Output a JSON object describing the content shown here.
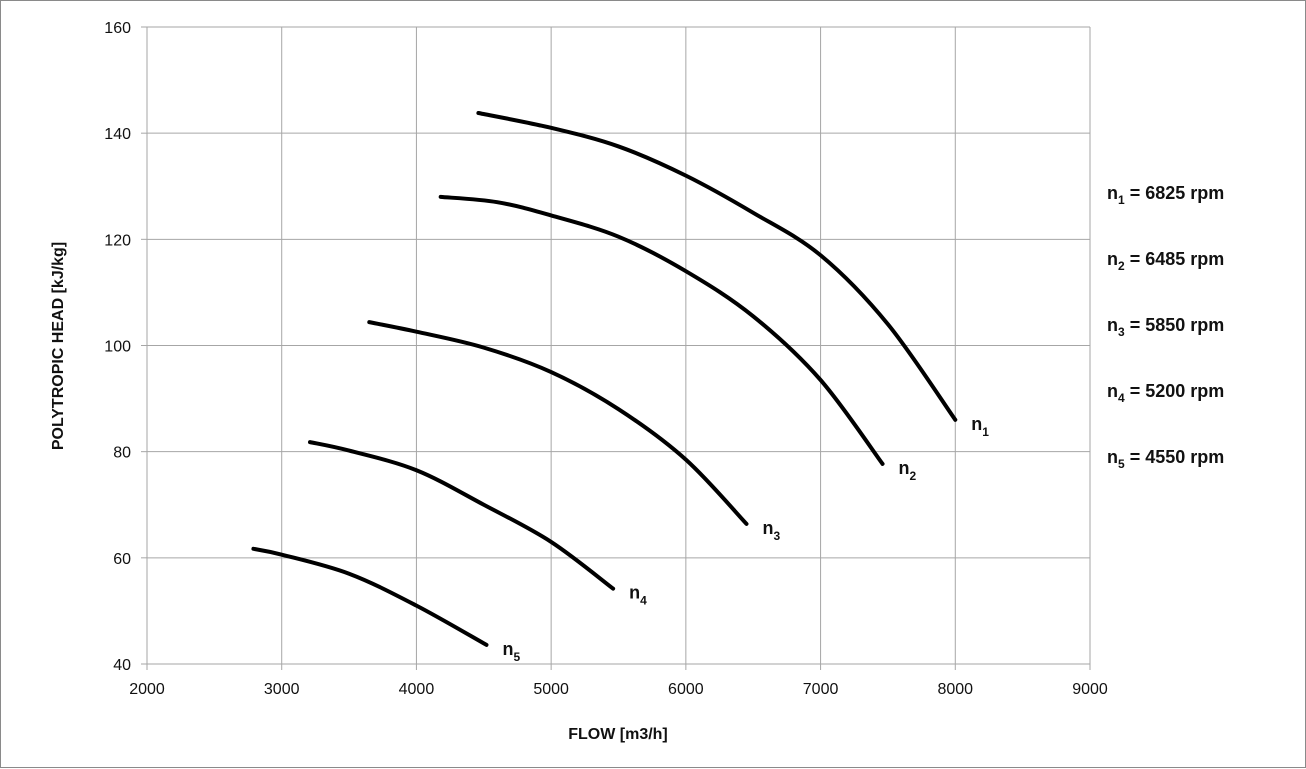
{
  "chart_data": {
    "type": "line",
    "title": "",
    "xlabel": "FLOW [m3/h]",
    "ylabel": "POLYTROPIC HEAD [kJ/kg]",
    "xlim": [
      2000,
      9000
    ],
    "ylim": [
      40,
      160
    ],
    "xticks": [
      2000,
      3000,
      4000,
      5000,
      6000,
      7000,
      8000,
      9000
    ],
    "yticks": [
      40,
      60,
      80,
      100,
      120,
      140,
      160
    ],
    "grid": true,
    "legend_placement": "right",
    "series": [
      {
        "name": "n",
        "sub": "1",
        "legend_text": "= 6825 rpm",
        "x": [
          4460,
          5000,
          5500,
          6000,
          6500,
          7000,
          7500,
          8000
        ],
        "y": [
          143.8,
          141,
          137.5,
          132,
          125,
          117,
          104,
          86
        ]
      },
      {
        "name": "n",
        "sub": "2",
        "legend_text": "= 6485 rpm",
        "x": [
          4180,
          4600,
          5000,
          5500,
          6000,
          6500,
          7000,
          7460
        ],
        "y": [
          128,
          127,
          124.5,
          120.5,
          114,
          105.5,
          93.5,
          77.7
        ]
      },
      {
        "name": "n",
        "sub": "3",
        "legend_text": "= 5850 rpm",
        "x": [
          3650,
          4000,
          4500,
          5000,
          5500,
          6000,
          6450
        ],
        "y": [
          104.4,
          102.6,
          99.6,
          95,
          88,
          78.5,
          66.4
        ]
      },
      {
        "name": "n",
        "sub": "4",
        "legend_text": "= 5200 rpm",
        "x": [
          3210,
          3500,
          4000,
          4500,
          5000,
          5460
        ],
        "y": [
          81.8,
          80.2,
          76.5,
          70,
          63,
          54.2
        ]
      },
      {
        "name": "n",
        "sub": "5",
        "legend_text": "= 4550 rpm",
        "x": [
          2790,
          3000,
          3500,
          4000,
          4520
        ],
        "y": [
          61.7,
          60.6,
          57,
          51,
          43.6
        ]
      }
    ]
  }
}
